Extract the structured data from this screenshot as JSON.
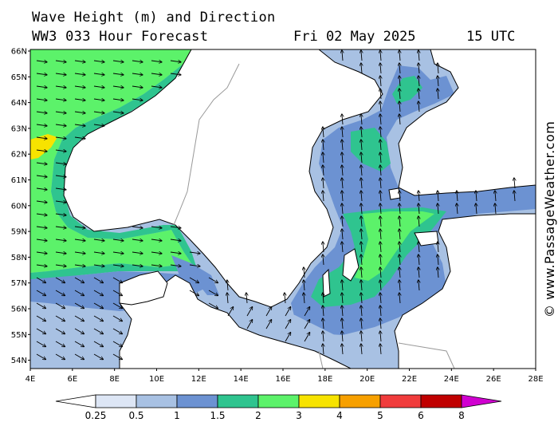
{
  "header": {
    "title": "Wave Height (m) and Direction",
    "model": "WW3 033 Hour Forecast",
    "date": "Fri 02 May 2025",
    "time": "15 UTC"
  },
  "watermark": "© www.PassageWeather.com",
  "axes": {
    "lat_labels": [
      "66N",
      "65N",
      "64N",
      "63N",
      "62N",
      "61N",
      "60N",
      "59N",
      "58N",
      "57N",
      "56N",
      "55N",
      "54N"
    ],
    "lon_labels": [
      "4E",
      "6E",
      "8E",
      "10E",
      "12E",
      "14E",
      "16E",
      "18E",
      "20E",
      "22E",
      "24E",
      "26E",
      "28E"
    ],
    "lat_range": [
      53.7,
      66.0
    ],
    "lon_range": [
      4.0,
      28.0
    ]
  },
  "legend": {
    "units": "m",
    "bins": [
      {
        "label": "0.25",
        "color": "#ffffff"
      },
      {
        "label": "0.5",
        "color": "#dde6f5"
      },
      {
        "label": "1",
        "color": "#a8c1e3"
      },
      {
        "label": "1.5",
        "color": "#6c92d2"
      },
      {
        "label": "2",
        "color": "#2fc48f"
      },
      {
        "label": "3",
        "color": "#5cf26a"
      },
      {
        "label": "4",
        "color": "#f7e300"
      },
      {
        "label": "5",
        "color": "#f7a000"
      },
      {
        "label": "6",
        "color": "#f03c3c"
      },
      {
        "label": "8",
        "color": "#c00000"
      },
      {
        "label": "",
        "color": "#d000d0"
      }
    ]
  },
  "colors": {
    "land": "#ffffff",
    "coast": "#000000",
    "border": "#999999"
  }
}
